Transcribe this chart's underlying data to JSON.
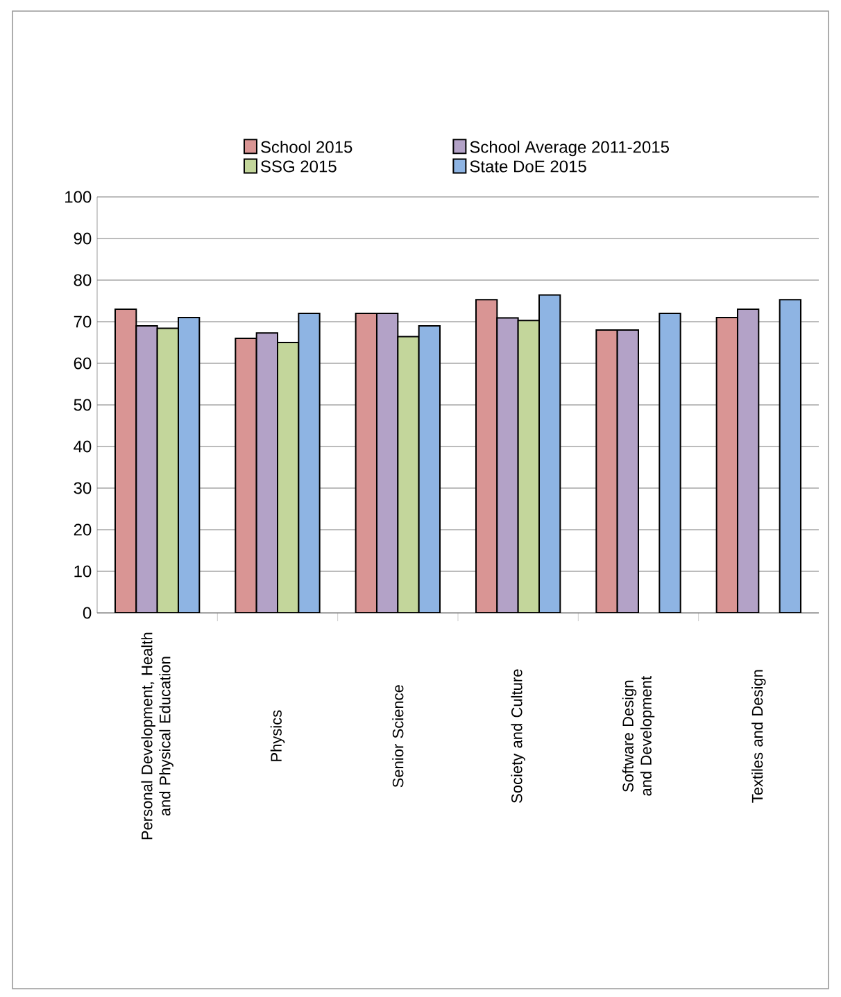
{
  "chart_data": {
    "type": "bar",
    "categories": [
      "Personal Development, Health and Physical Education",
      "Physics",
      "Senior Science",
      "Society and Culture",
      "Software Design and Development",
      "Textiles and Design"
    ],
    "series": [
      {
        "name": "School 2015",
        "color": "#d99594",
        "values": [
          73,
          66,
          72,
          75.3,
          68,
          71
        ]
      },
      {
        "name": "School Average 2011-2015",
        "color": "#b3a2c7",
        "values": [
          69,
          67.3,
          72,
          70.9,
          68,
          73
        ]
      },
      {
        "name": "SSG 2015",
        "color": "#c3d69b",
        "values": [
          68.4,
          65,
          66.4,
          70.3,
          null,
          null
        ]
      },
      {
        "name": "State DoE 2015",
        "color": "#8eb4e3",
        "values": [
          71,
          72,
          69,
          76.4,
          72,
          75.3
        ]
      }
    ],
    "ylim": [
      0,
      100
    ],
    "yticks": [
      0,
      10,
      20,
      30,
      40,
      50,
      60,
      70,
      80,
      90,
      100
    ],
    "grid": "y",
    "legend": "top"
  }
}
